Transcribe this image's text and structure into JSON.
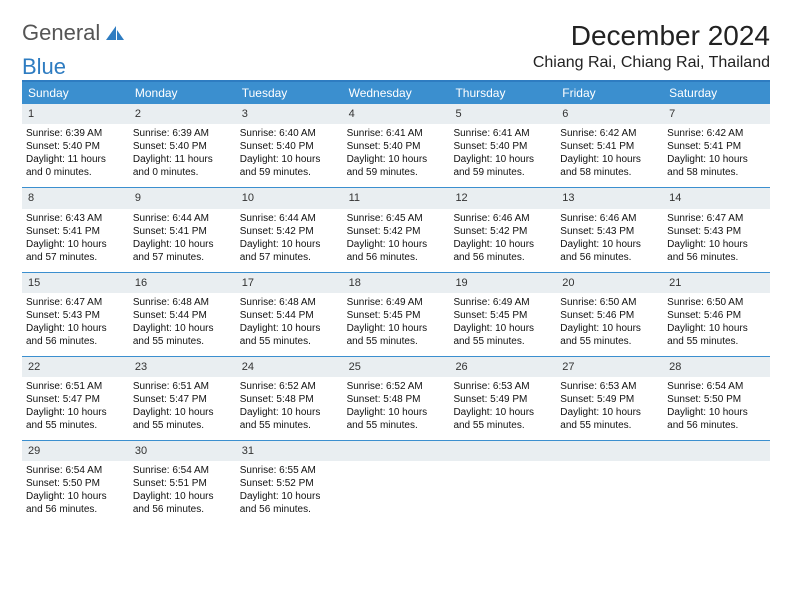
{
  "brand": {
    "word1": "General",
    "word2": "Blue"
  },
  "title": "December 2024",
  "subtitle": "Chiang Rai, Chiang Rai, Thailand",
  "colors": {
    "header_bg": "#3b8fcf",
    "header_text": "#ffffff",
    "border": "#2e7cc1",
    "daynum_bg": "#e9eef1",
    "body_text": "#111111",
    "logo_gray": "#555555",
    "logo_blue": "#2e7cc1"
  },
  "day_headers": [
    "Sunday",
    "Monday",
    "Tuesday",
    "Wednesday",
    "Thursday",
    "Friday",
    "Saturday"
  ],
  "grid": {
    "cols": 7,
    "rows": 5
  },
  "days": [
    {
      "n": "1",
      "sunrise": "Sunrise: 6:39 AM",
      "sunset": "Sunset: 5:40 PM",
      "daylight": "Daylight: 11 hours and 0 minutes."
    },
    {
      "n": "2",
      "sunrise": "Sunrise: 6:39 AM",
      "sunset": "Sunset: 5:40 PM",
      "daylight": "Daylight: 11 hours and 0 minutes."
    },
    {
      "n": "3",
      "sunrise": "Sunrise: 6:40 AM",
      "sunset": "Sunset: 5:40 PM",
      "daylight": "Daylight: 10 hours and 59 minutes."
    },
    {
      "n": "4",
      "sunrise": "Sunrise: 6:41 AM",
      "sunset": "Sunset: 5:40 PM",
      "daylight": "Daylight: 10 hours and 59 minutes."
    },
    {
      "n": "5",
      "sunrise": "Sunrise: 6:41 AM",
      "sunset": "Sunset: 5:40 PM",
      "daylight": "Daylight: 10 hours and 59 minutes."
    },
    {
      "n": "6",
      "sunrise": "Sunrise: 6:42 AM",
      "sunset": "Sunset: 5:41 PM",
      "daylight": "Daylight: 10 hours and 58 minutes."
    },
    {
      "n": "7",
      "sunrise": "Sunrise: 6:42 AM",
      "sunset": "Sunset: 5:41 PM",
      "daylight": "Daylight: 10 hours and 58 minutes."
    },
    {
      "n": "8",
      "sunrise": "Sunrise: 6:43 AM",
      "sunset": "Sunset: 5:41 PM",
      "daylight": "Daylight: 10 hours and 57 minutes."
    },
    {
      "n": "9",
      "sunrise": "Sunrise: 6:44 AM",
      "sunset": "Sunset: 5:41 PM",
      "daylight": "Daylight: 10 hours and 57 minutes."
    },
    {
      "n": "10",
      "sunrise": "Sunrise: 6:44 AM",
      "sunset": "Sunset: 5:42 PM",
      "daylight": "Daylight: 10 hours and 57 minutes."
    },
    {
      "n": "11",
      "sunrise": "Sunrise: 6:45 AM",
      "sunset": "Sunset: 5:42 PM",
      "daylight": "Daylight: 10 hours and 56 minutes."
    },
    {
      "n": "12",
      "sunrise": "Sunrise: 6:46 AM",
      "sunset": "Sunset: 5:42 PM",
      "daylight": "Daylight: 10 hours and 56 minutes."
    },
    {
      "n": "13",
      "sunrise": "Sunrise: 6:46 AM",
      "sunset": "Sunset: 5:43 PM",
      "daylight": "Daylight: 10 hours and 56 minutes."
    },
    {
      "n": "14",
      "sunrise": "Sunrise: 6:47 AM",
      "sunset": "Sunset: 5:43 PM",
      "daylight": "Daylight: 10 hours and 56 minutes."
    },
    {
      "n": "15",
      "sunrise": "Sunrise: 6:47 AM",
      "sunset": "Sunset: 5:43 PM",
      "daylight": "Daylight: 10 hours and 56 minutes."
    },
    {
      "n": "16",
      "sunrise": "Sunrise: 6:48 AM",
      "sunset": "Sunset: 5:44 PM",
      "daylight": "Daylight: 10 hours and 55 minutes."
    },
    {
      "n": "17",
      "sunrise": "Sunrise: 6:48 AM",
      "sunset": "Sunset: 5:44 PM",
      "daylight": "Daylight: 10 hours and 55 minutes."
    },
    {
      "n": "18",
      "sunrise": "Sunrise: 6:49 AM",
      "sunset": "Sunset: 5:45 PM",
      "daylight": "Daylight: 10 hours and 55 minutes."
    },
    {
      "n": "19",
      "sunrise": "Sunrise: 6:49 AM",
      "sunset": "Sunset: 5:45 PM",
      "daylight": "Daylight: 10 hours and 55 minutes."
    },
    {
      "n": "20",
      "sunrise": "Sunrise: 6:50 AM",
      "sunset": "Sunset: 5:46 PM",
      "daylight": "Daylight: 10 hours and 55 minutes."
    },
    {
      "n": "21",
      "sunrise": "Sunrise: 6:50 AM",
      "sunset": "Sunset: 5:46 PM",
      "daylight": "Daylight: 10 hours and 55 minutes."
    },
    {
      "n": "22",
      "sunrise": "Sunrise: 6:51 AM",
      "sunset": "Sunset: 5:47 PM",
      "daylight": "Daylight: 10 hours and 55 minutes."
    },
    {
      "n": "23",
      "sunrise": "Sunrise: 6:51 AM",
      "sunset": "Sunset: 5:47 PM",
      "daylight": "Daylight: 10 hours and 55 minutes."
    },
    {
      "n": "24",
      "sunrise": "Sunrise: 6:52 AM",
      "sunset": "Sunset: 5:48 PM",
      "daylight": "Daylight: 10 hours and 55 minutes."
    },
    {
      "n": "25",
      "sunrise": "Sunrise: 6:52 AM",
      "sunset": "Sunset: 5:48 PM",
      "daylight": "Daylight: 10 hours and 55 minutes."
    },
    {
      "n": "26",
      "sunrise": "Sunrise: 6:53 AM",
      "sunset": "Sunset: 5:49 PM",
      "daylight": "Daylight: 10 hours and 55 minutes."
    },
    {
      "n": "27",
      "sunrise": "Sunrise: 6:53 AM",
      "sunset": "Sunset: 5:49 PM",
      "daylight": "Daylight: 10 hours and 55 minutes."
    },
    {
      "n": "28",
      "sunrise": "Sunrise: 6:54 AM",
      "sunset": "Sunset: 5:50 PM",
      "daylight": "Daylight: 10 hours and 56 minutes."
    },
    {
      "n": "29",
      "sunrise": "Sunrise: 6:54 AM",
      "sunset": "Sunset: 5:50 PM",
      "daylight": "Daylight: 10 hours and 56 minutes."
    },
    {
      "n": "30",
      "sunrise": "Sunrise: 6:54 AM",
      "sunset": "Sunset: 5:51 PM",
      "daylight": "Daylight: 10 hours and 56 minutes."
    },
    {
      "n": "31",
      "sunrise": "Sunrise: 6:55 AM",
      "sunset": "Sunset: 5:52 PM",
      "daylight": "Daylight: 10 hours and 56 minutes."
    }
  ]
}
